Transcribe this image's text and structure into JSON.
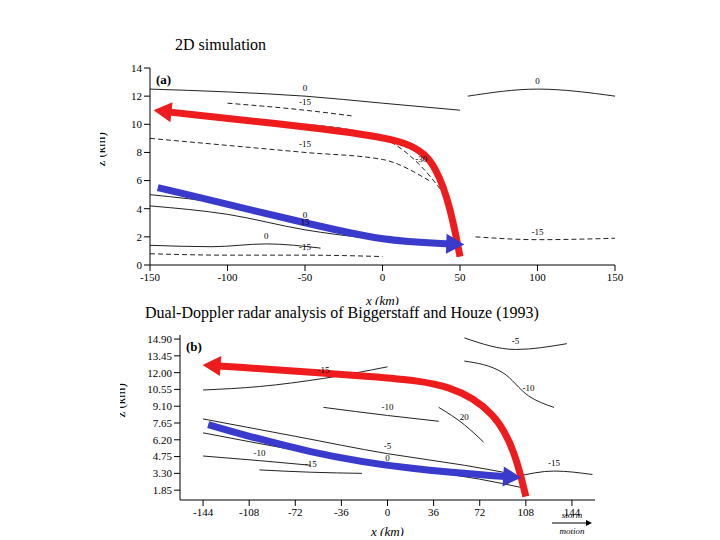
{
  "chart_data": [
    {
      "type": "contour",
      "title": "2D simulation",
      "panel_label": "(a)",
      "x_label": "x (km)",
      "y_label": "z (km)",
      "xlim": [
        -150,
        150
      ],
      "xticks": [
        -150,
        -100,
        -50,
        0,
        50,
        100,
        150
      ],
      "ylim": [
        0,
        14
      ],
      "yticks": [
        0,
        2,
        4,
        6,
        8,
        10,
        12,
        14
      ],
      "contours": [
        {
          "level": 0,
          "line_style": "solid",
          "x": [
            -150,
            -100,
            -50,
            0,
            40
          ],
          "y": [
            5.0,
            4.3,
            3.0,
            2.0,
            1.5
          ]
        },
        {
          "level": 15,
          "line_style": "solid",
          "x": [
            -150,
            -100,
            -50,
            -10
          ],
          "y": [
            4.2,
            3.6,
            2.5,
            1.9
          ]
        },
        {
          "level": 0,
          "line_style": "solid",
          "x": [
            -150,
            -110,
            -75,
            -40
          ],
          "y": [
            1.4,
            1.3,
            1.5,
            1.2
          ]
        },
        {
          "level": -15,
          "line_style": "dashed",
          "x": [
            -150,
            -100,
            -50,
            0
          ],
          "y": [
            0.8,
            0.7,
            0.7,
            0.6
          ]
        },
        {
          "level": -15,
          "line_style": "dashed",
          "x": [
            -150,
            -100,
            -50,
            0,
            30
          ],
          "y": [
            9.0,
            8.5,
            8.0,
            7.5,
            6.0
          ]
        },
        {
          "level": -30,
          "line_style": "dashed",
          "x": [
            -50,
            0,
            25,
            40
          ],
          "y": [
            10.0,
            9.0,
            7.0,
            5.0
          ]
        },
        {
          "level": 0,
          "line_style": "solid",
          "x": [
            -150,
            -100,
            -50,
            0,
            50
          ],
          "y": [
            12.5,
            12.3,
            12.0,
            11.5,
            11.0
          ]
        },
        {
          "level": -15,
          "line_style": "dashed",
          "x": [
            -100,
            -50,
            -20
          ],
          "y": [
            11.5,
            11.0,
            10.6
          ]
        },
        {
          "level": 0,
          "line_style": "solid",
          "x": [
            55,
            100,
            150
          ],
          "y": [
            12.0,
            12.5,
            12.0
          ]
        },
        {
          "level": -15,
          "line_style": "dashed",
          "x": [
            60,
            100,
            150
          ],
          "y": [
            2.0,
            1.8,
            1.9
          ]
        }
      ],
      "arrows": [
        {
          "color": "#ee1c1c",
          "x": [
            50,
            44,
            35,
            20,
            -30,
            -140
          ],
          "y": [
            0.6,
            4.0,
            7.0,
            8.8,
            9.6,
            10.9
          ]
        },
        {
          "color": "#3a3acd",
          "x": [
            -145,
            -50,
            0,
            45
          ],
          "y": [
            5.5,
            3.0,
            1.7,
            1.5
          ]
        }
      ]
    },
    {
      "type": "contour",
      "title": "Dual-Doppler radar analysis of Biggerstaff and Houze (1993)",
      "panel_label": "(b)",
      "x_label": "x (km)",
      "y_label": "z (km)",
      "storm_motion": "storm motion",
      "xlim": [
        -162,
        162
      ],
      "xticks": [
        -144,
        -108,
        -72,
        -36,
        0,
        36,
        72,
        108,
        144
      ],
      "ylim": [
        1.0,
        15.25
      ],
      "yticks": [
        {
          "value": 14.9,
          "label": "14.90"
        },
        13.45,
        {
          "value": 12,
          "label": "12.00"
        },
        10.55,
        {
          "value": 9.1,
          "label": "9.10"
        },
        7.65,
        {
          "value": 6.2,
          "label": "6.20"
        },
        4.75,
        {
          "value": 3.3,
          "label": "3.30"
        },
        1.85
      ],
      "contours": [
        {
          "level": -15,
          "line_style": "solid",
          "x": [
            -144,
            -100,
            -50,
            0
          ],
          "y": [
            10.5,
            10.8,
            11.5,
            12.5
          ]
        },
        {
          "level": -5,
          "line_style": "solid",
          "x": [
            60,
            100,
            140
          ],
          "y": [
            15.0,
            14.0,
            14.5
          ]
        },
        {
          "level": -10,
          "line_style": "solid",
          "x": [
            60,
            90,
            110,
            130
          ],
          "y": [
            13.0,
            12.0,
            10.0,
            9.0
          ]
        },
        {
          "level": 0,
          "line_style": "solid",
          "x": [
            -144,
            -72,
            0,
            72,
            108
          ],
          "y": [
            6.8,
            5.3,
            3.9,
            2.8,
            2.0
          ]
        },
        {
          "level": -5,
          "line_style": "solid",
          "x": [
            -144,
            -72,
            0,
            60,
            100
          ],
          "y": [
            8.0,
            6.5,
            5.0,
            4.0,
            3.2
          ]
        },
        {
          "level": -10,
          "line_style": "solid",
          "x": [
            -144,
            -100,
            -60
          ],
          "y": [
            4.8,
            4.4,
            4.0
          ]
        },
        {
          "level": -15,
          "line_style": "solid",
          "x": [
            -100,
            -60,
            -20
          ],
          "y": [
            3.6,
            3.4,
            3.3
          ]
        },
        {
          "level": -15,
          "line_style": "solid",
          "x": [
            100,
            130,
            160
          ],
          "y": [
            3.0,
            3.5,
            3.2
          ]
        },
        {
          "level": 20,
          "line_style": "solid",
          "x": [
            40,
            60,
            75
          ],
          "y": [
            9.0,
            7.5,
            6.0
          ]
        },
        {
          "level": -10,
          "line_style": "solid",
          "x": [
            -50,
            0,
            40
          ],
          "y": [
            9.0,
            8.3,
            7.8
          ]
        }
      ],
      "arrows": [
        {
          "color": "#ee1c1c",
          "x": [
            108,
            100,
            85,
            50,
            0,
            -135
          ],
          "y": [
            1.3,
            5.0,
            8.5,
            11.0,
            11.6,
            12.6
          ]
        },
        {
          "color": "#3a3acd",
          "x": [
            -140,
            -60,
            20,
            95
          ],
          "y": [
            7.5,
            5.0,
            3.6,
            3.0
          ]
        }
      ]
    }
  ]
}
